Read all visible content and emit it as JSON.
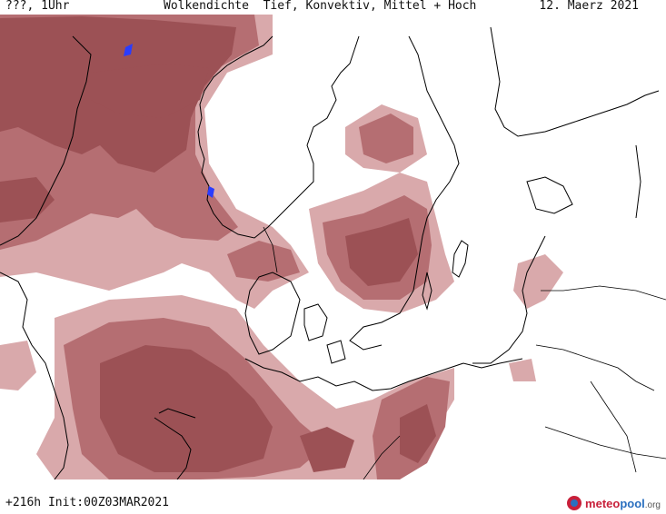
{
  "header": {
    "left": "???, 1Uhr",
    "title": "Wolkendichte  Tief, Konvektiv, Mittel + Hoch",
    "date": "12. Maerz 2021"
  },
  "footer": {
    "run": "+216h Init:00Z03MAR2021",
    "logo_main": "meteo",
    "logo_accent": "pool",
    "logo_tld": ".org"
  },
  "map": {
    "colors": {
      "cloud_dense": "#9c5155",
      "cloud_medium": "#b56e72",
      "cloud_light": "#d9a9ab",
      "coast": "#000000",
      "precip_marker": "#2a3cff"
    }
  }
}
